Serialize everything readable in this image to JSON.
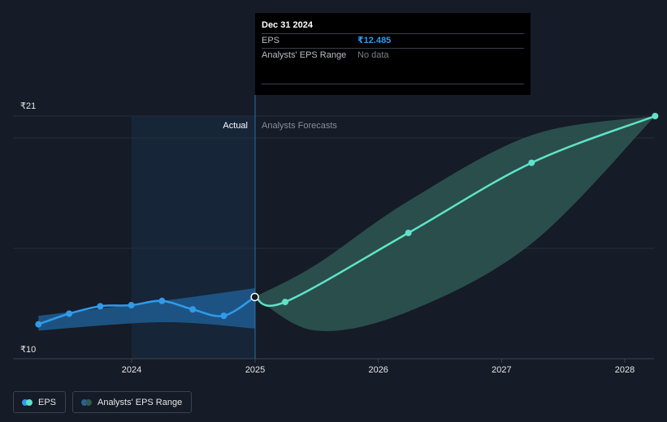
{
  "tooltip": {
    "date": "Dec 31 2024",
    "eps_label": "EPS",
    "eps_value": "₹12.485",
    "range_label": "Analysts' EPS Range",
    "range_value": "No data"
  },
  "legend": {
    "eps": "EPS",
    "range": "Analysts' EPS Range"
  },
  "colors": {
    "background": "#151b27",
    "actual_line": "#2f9bea",
    "forecast_line": "#5fe3c8",
    "actual_band": "#1f5c91",
    "forecast_band": "#2c5450"
  },
  "chart_data": {
    "type": "line",
    "title": "",
    "xlabel": "",
    "ylabel": "",
    "ylim": [
      10,
      21
    ],
    "yticks": [
      "₹10",
      "₹21"
    ],
    "xticks": [
      "2024",
      "2025",
      "2026",
      "2027",
      "2028"
    ],
    "region_labels": {
      "actual": "Actual",
      "forecast": "Analysts Forecasts"
    },
    "divider_x": "2024-12-31",
    "series": [
      {
        "name": "EPS",
        "kind": "actual",
        "x": [
          "2023-03-31",
          "2023-06-30",
          "2023-09-30",
          "2023-12-31",
          "2024-03-31",
          "2024-06-30",
          "2024-09-30",
          "2024-12-31"
        ],
        "y": [
          11.2,
          11.7,
          12.05,
          12.1,
          12.3,
          11.9,
          11.6,
          12.485
        ]
      },
      {
        "name": "EPS",
        "kind": "forecast",
        "x": [
          "2024-12-31",
          "2025-03-31",
          "2026-03-31",
          "2027-03-31",
          "2028-03-31"
        ],
        "y": [
          12.485,
          12.25,
          15.5,
          18.8,
          21.0
        ]
      },
      {
        "name": "Analysts' EPS Range",
        "kind": "actual_band",
        "x": [
          "2023-03-31",
          "2024-03-31",
          "2024-12-31"
        ],
        "upper": [
          11.6,
          12.3,
          12.9
        ],
        "lower": [
          10.9,
          11.3,
          11.0
        ]
      },
      {
        "name": "Analysts' EPS Range",
        "kind": "forecast_band",
        "x": [
          "2024-12-31",
          "2025-06-30",
          "2026-03-31",
          "2027-03-31",
          "2028-03-31"
        ],
        "upper": [
          12.485,
          14.0,
          17.0,
          20.1,
          21.0
        ],
        "lower": [
          12.485,
          10.9,
          11.8,
          15.0,
          21.0
        ]
      }
    ]
  }
}
